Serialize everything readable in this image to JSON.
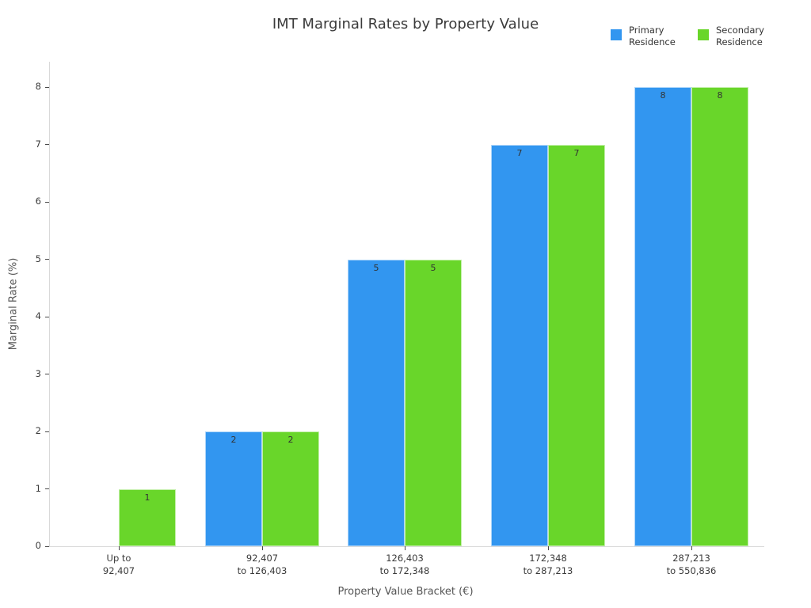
{
  "chart_data": {
    "type": "bar",
    "title": "IMT Marginal Rates by Property Value",
    "xlabel": "Property Value Bracket (€)",
    "ylabel": "Marginal Rate (%)",
    "categories": [
      [
        "Up to",
        "92,407"
      ],
      [
        "92,407",
        "to 126,403"
      ],
      [
        "126,403",
        "to 172,348"
      ],
      [
        "172,348",
        "to 287,213"
      ],
      [
        "287,213",
        "to 550,836"
      ]
    ],
    "series": [
      {
        "name": "Primary Residence",
        "color": "#3296f0",
        "values": [
          0,
          2,
          5,
          7,
          8
        ]
      },
      {
        "name": "Secondary Residence",
        "color": "#69d62a",
        "values": [
          1,
          2,
          5,
          7,
          8
        ]
      }
    ],
    "bar_value_labels": [
      "1",
      "2",
      "2",
      "5",
      "5",
      "7",
      "7",
      "8",
      "8"
    ],
    "ylim": [
      0,
      8.4
    ],
    "yticks": [
      0,
      1,
      2,
      3,
      4,
      5,
      6,
      7,
      8
    ],
    "grid": false,
    "legend_position": "top-right"
  }
}
